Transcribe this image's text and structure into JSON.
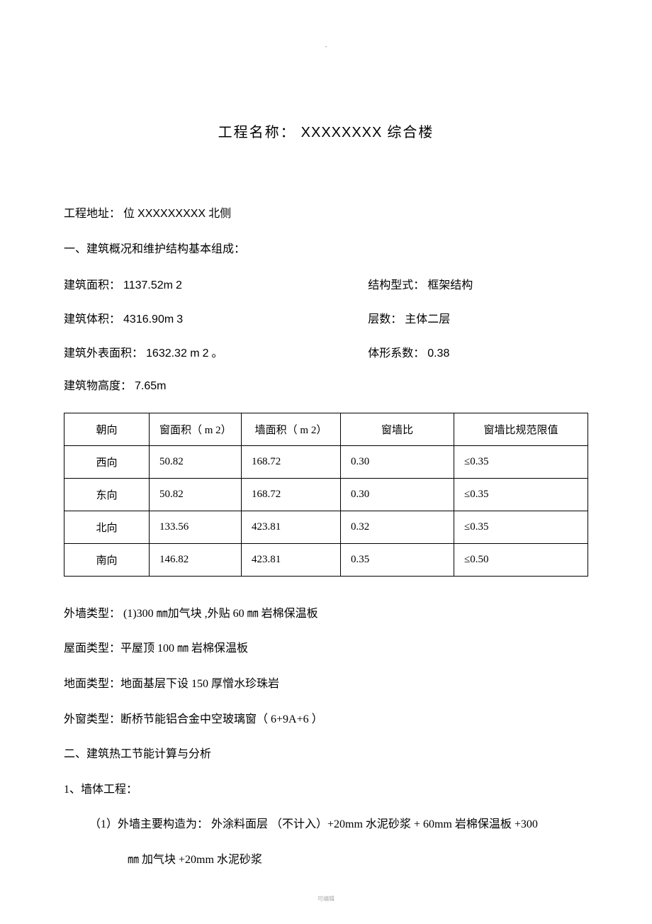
{
  "topMark": "-",
  "title": {
    "prefix": "工程名称：",
    "name": "XXXXXXXX",
    "suffix": " 综合楼"
  },
  "address": {
    "label": "工程地址：",
    "prefix": " 位 ",
    "code": "XXXXXXXXX",
    "suffix": " 北侧"
  },
  "sec1_heading": "一、建筑概况和维护结构基本组成：",
  "row1": {
    "leftLabel": "建筑面积：",
    "leftVal": " 1137.52m",
    "leftUnit": "  2",
    "rightLabel": "结构型式：",
    "rightVal": "框架结构"
  },
  "row2": {
    "leftLabel": "建筑体积：",
    "leftVal": " 4316.90m",
    "leftUnit": "  3",
    "rightLabel": "层数：",
    "rightVal": "主体二层"
  },
  "row3": {
    "leftLabel": "建筑外表面积：",
    "leftVal": "  1632.32 m",
    "leftUnit": "  2",
    "leftEnd": "。",
    "rightLabel": "体形系数：",
    "rightVal": "   0.38"
  },
  "heightLine": {
    "label": "建筑物高度：",
    "val": "  7.65m"
  },
  "table": {
    "headers": [
      "朝向",
      "窗面积（ m 2）",
      "墙面积（ m 2）",
      "窗墙比",
      "窗墙比规范限值"
    ],
    "rows": [
      [
        "西向",
        "50.82",
        "168.72",
        "0.30",
        "≤0.35"
      ],
      [
        "东向",
        "50.82",
        "168.72",
        "0.30",
        "≤0.35"
      ],
      [
        "北向",
        "133.56",
        "423.81",
        "0.32",
        "≤0.35"
      ],
      [
        "南向",
        "146.82",
        "423.81",
        "0.35",
        "≤0.50"
      ]
    ]
  },
  "wallType": "外墙类型： (1)300  ㎜加气块 ,外贴 60 ㎜ 岩棉保温板",
  "roofType": "屋面类型：平屋顶   100 ㎜ 岩棉保温板",
  "floorType": "地面类型：地面基层下设    150 厚憎水珍珠岩",
  "windowType": "外窗类型：断桥节能铝合金中空玻璃窗（    6+9A+6  ）",
  "sec2_heading": "二、建筑热工节能计算与分析",
  "item1": "1、墙体工程：",
  "sub1_line1": "（1）外墙主要构造为： 外涂料面层 （不计入）+20mm   水泥砂浆 + 60mm   岩棉保温板 +300",
  "sub1_line2": "㎜ 加气块 +20mm    水泥砂浆",
  "footerMark": "可编辑"
}
